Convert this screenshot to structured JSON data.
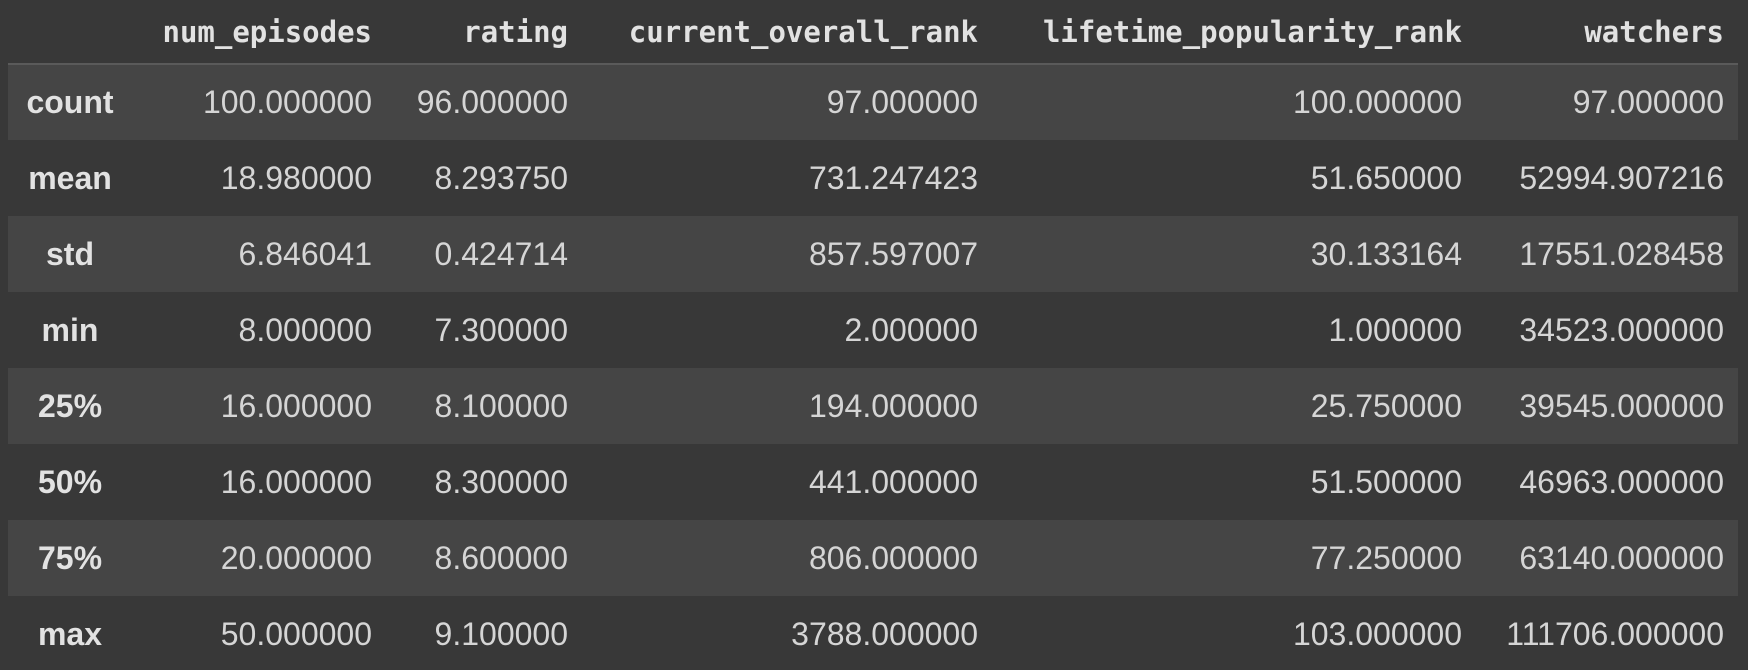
{
  "table": {
    "columns": [
      "",
      "num_episodes",
      "rating",
      "current_overall_rank",
      "lifetime_popularity_rank",
      "watchers"
    ],
    "rows": [
      {
        "label": "count",
        "values": [
          "100.000000",
          "96.000000",
          "97.000000",
          "100.000000",
          "97.000000"
        ]
      },
      {
        "label": "mean",
        "values": [
          "18.980000",
          "8.293750",
          "731.247423",
          "51.650000",
          "52994.907216"
        ]
      },
      {
        "label": "std",
        "values": [
          "6.846041",
          "0.424714",
          "857.597007",
          "30.133164",
          "17551.028458"
        ]
      },
      {
        "label": "min",
        "values": [
          "8.000000",
          "7.300000",
          "2.000000",
          "1.000000",
          "34523.000000"
        ]
      },
      {
        "label": "25%",
        "values": [
          "16.000000",
          "8.100000",
          "194.000000",
          "25.750000",
          "39545.000000"
        ]
      },
      {
        "label": "50%",
        "values": [
          "16.000000",
          "8.300000",
          "441.000000",
          "51.500000",
          "46963.000000"
        ]
      },
      {
        "label": "75%",
        "values": [
          "20.000000",
          "8.600000",
          "806.000000",
          "77.250000",
          "63140.000000"
        ]
      },
      {
        "label": "max",
        "values": [
          "50.000000",
          "9.100000",
          "3788.000000",
          "103.000000",
          "111706.000000"
        ]
      }
    ]
  },
  "colors": {
    "background": "#383838",
    "row_striped": "#454545",
    "text": "#d5d5d5",
    "header_text": "#e2e2e2"
  }
}
